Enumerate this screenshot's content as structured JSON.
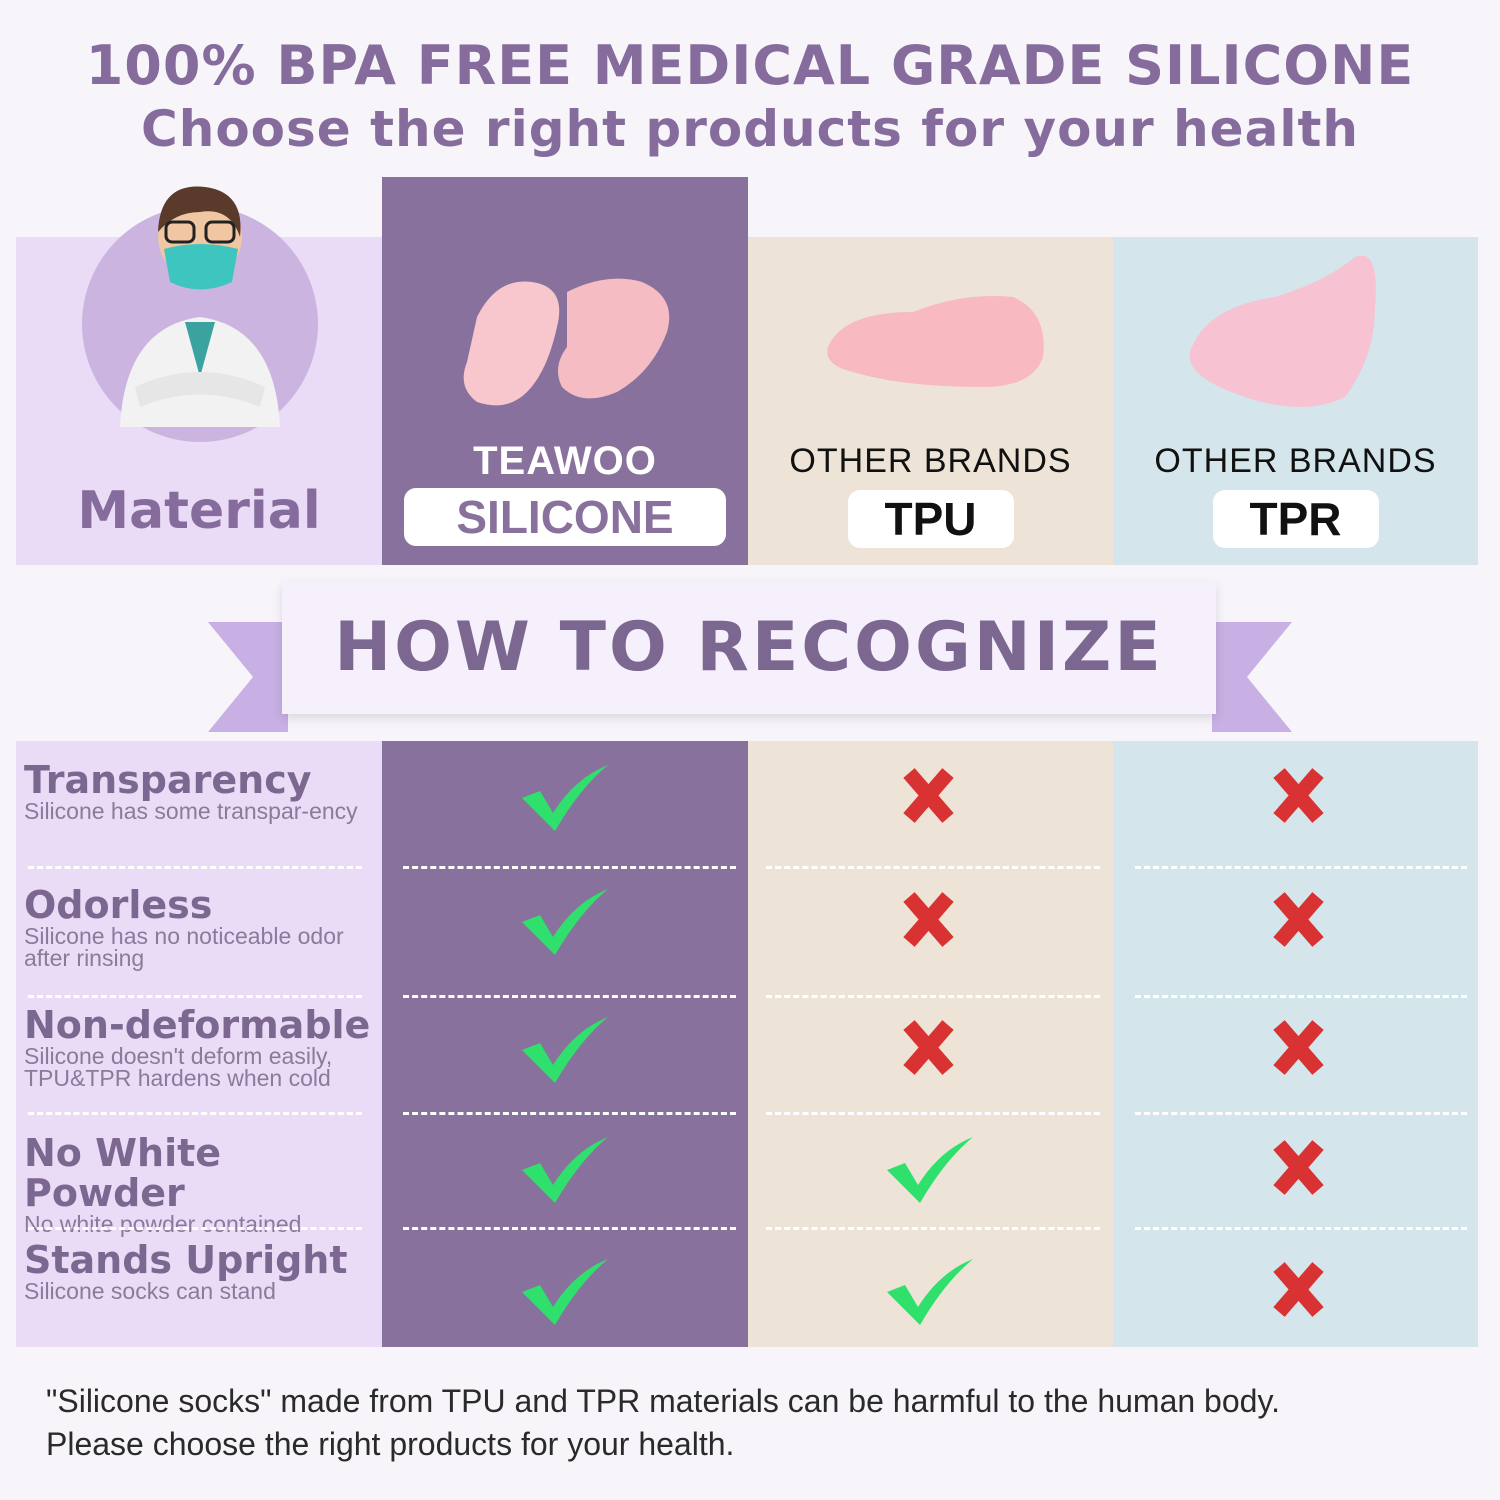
{
  "header": {
    "line1": "100% BPA FREE MEDICAL GRADE SILICONE",
    "line2": "Choose the right products for your health"
  },
  "material_label": "Material",
  "columns": [
    {
      "brand": "TEAWOO",
      "material": "SILICONE"
    },
    {
      "brand": "OTHER BRANDS",
      "material": "TPU"
    },
    {
      "brand": "OTHER BRANDS",
      "material": "TPR"
    }
  ],
  "banner": "HOW TO RECOGNIZE",
  "features": [
    {
      "title": "Transparency",
      "desc": "Silicone has some transpar-ency",
      "results": [
        "check",
        "cross",
        "cross"
      ]
    },
    {
      "title": "Odorless",
      "desc": "Silicone has no noticeable odor after rinsing",
      "results": [
        "check",
        "cross",
        "cross"
      ]
    },
    {
      "title": "Non-deformable",
      "desc": "Silicone doesn't deform easily, TPU&TPR hardens when cold",
      "results": [
        "check",
        "cross",
        "cross"
      ]
    },
    {
      "title": "No White Powder",
      "desc": "No white powder contained",
      "results": [
        "check",
        "check",
        "cross"
      ]
    },
    {
      "title": "Stands Upright",
      "desc": "Silicone socks can stand",
      "results": [
        "check",
        "check",
        "cross"
      ]
    }
  ],
  "footer": {
    "line1": "\"Silicone socks\" made from TPU and TPR materials can be harmful to the human body.",
    "line2": "Please choose the right products for your health."
  },
  "colors": {
    "title": "#866c9c",
    "teawoo": "#88719c",
    "tpu": "#ede3d7",
    "tpr": "#d4e5eb",
    "left": "#eadcf6",
    "check": "#2fe06c",
    "cross": "#d93232"
  }
}
